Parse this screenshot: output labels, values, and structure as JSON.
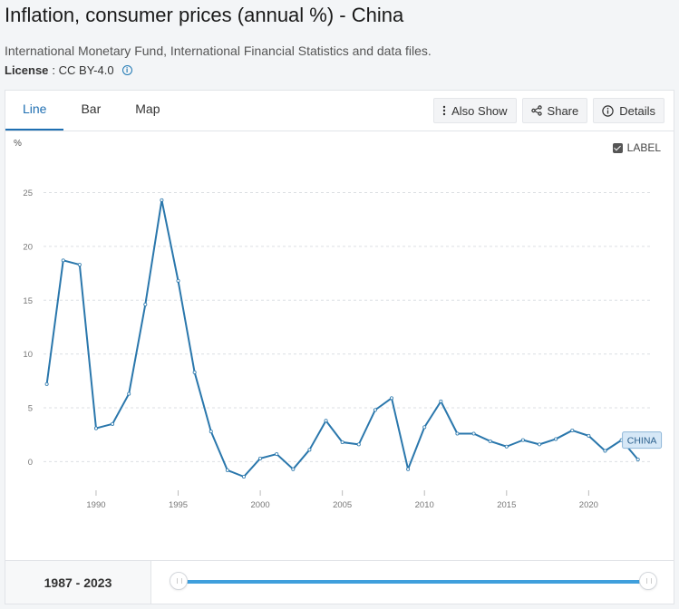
{
  "header": {
    "title": "Inflation, consumer prices (annual %) - China",
    "source": "International Monetary Fund, International Financial Statistics and data files.",
    "license_label": "License",
    "license_value": ": CC BY-4.0",
    "info_icon": "info-icon"
  },
  "tabs": [
    {
      "label": "Line",
      "active": true
    },
    {
      "label": "Bar",
      "active": false
    },
    {
      "label": "Map",
      "active": false
    }
  ],
  "toolbar": {
    "also_show": "Also Show",
    "share": "Share",
    "details": "Details"
  },
  "label_toggle": {
    "text": "LABEL",
    "checked": true
  },
  "range": {
    "label": "1987 - 2023",
    "start": 1987,
    "end": 2023
  },
  "colors": {
    "line": "#2a77ac",
    "accent": "#1f6fb2",
    "slider": "#3f9fdc",
    "label_bg": "#d6e8f7"
  },
  "chart_data": {
    "type": "line",
    "title": "Inflation, consumer prices (annual %) - China",
    "ylabel": "%",
    "xlabel": "",
    "ylim": [
      -3,
      29
    ],
    "xlim": [
      1986.8,
      2023.9
    ],
    "yticks": [
      0,
      5,
      10,
      15,
      20,
      25
    ],
    "xticks": [
      1990,
      1995,
      2000,
      2005,
      2010,
      2015,
      2020
    ],
    "grid": true,
    "series": [
      {
        "name": "CHINA",
        "x": [
          1987,
          1988,
          1989,
          1990,
          1991,
          1992,
          1993,
          1994,
          1995,
          1996,
          1997,
          1998,
          1999,
          2000,
          2001,
          2002,
          2003,
          2004,
          2005,
          2006,
          2007,
          2008,
          2009,
          2010,
          2011,
          2012,
          2013,
          2014,
          2015,
          2016,
          2017,
          2018,
          2019,
          2020,
          2021,
          2022,
          2023
        ],
        "values": [
          7.2,
          18.7,
          18.3,
          3.1,
          3.5,
          6.3,
          14.6,
          24.3,
          16.8,
          8.3,
          2.8,
          -0.8,
          -1.4,
          0.3,
          0.7,
          -0.7,
          1.1,
          3.8,
          1.8,
          1.6,
          4.8,
          5.9,
          -0.7,
          3.2,
          5.6,
          2.6,
          2.6,
          1.9,
          1.4,
          2.0,
          1.6,
          2.1,
          2.9,
          2.4,
          1.0,
          2.0,
          0.2
        ]
      }
    ]
  }
}
